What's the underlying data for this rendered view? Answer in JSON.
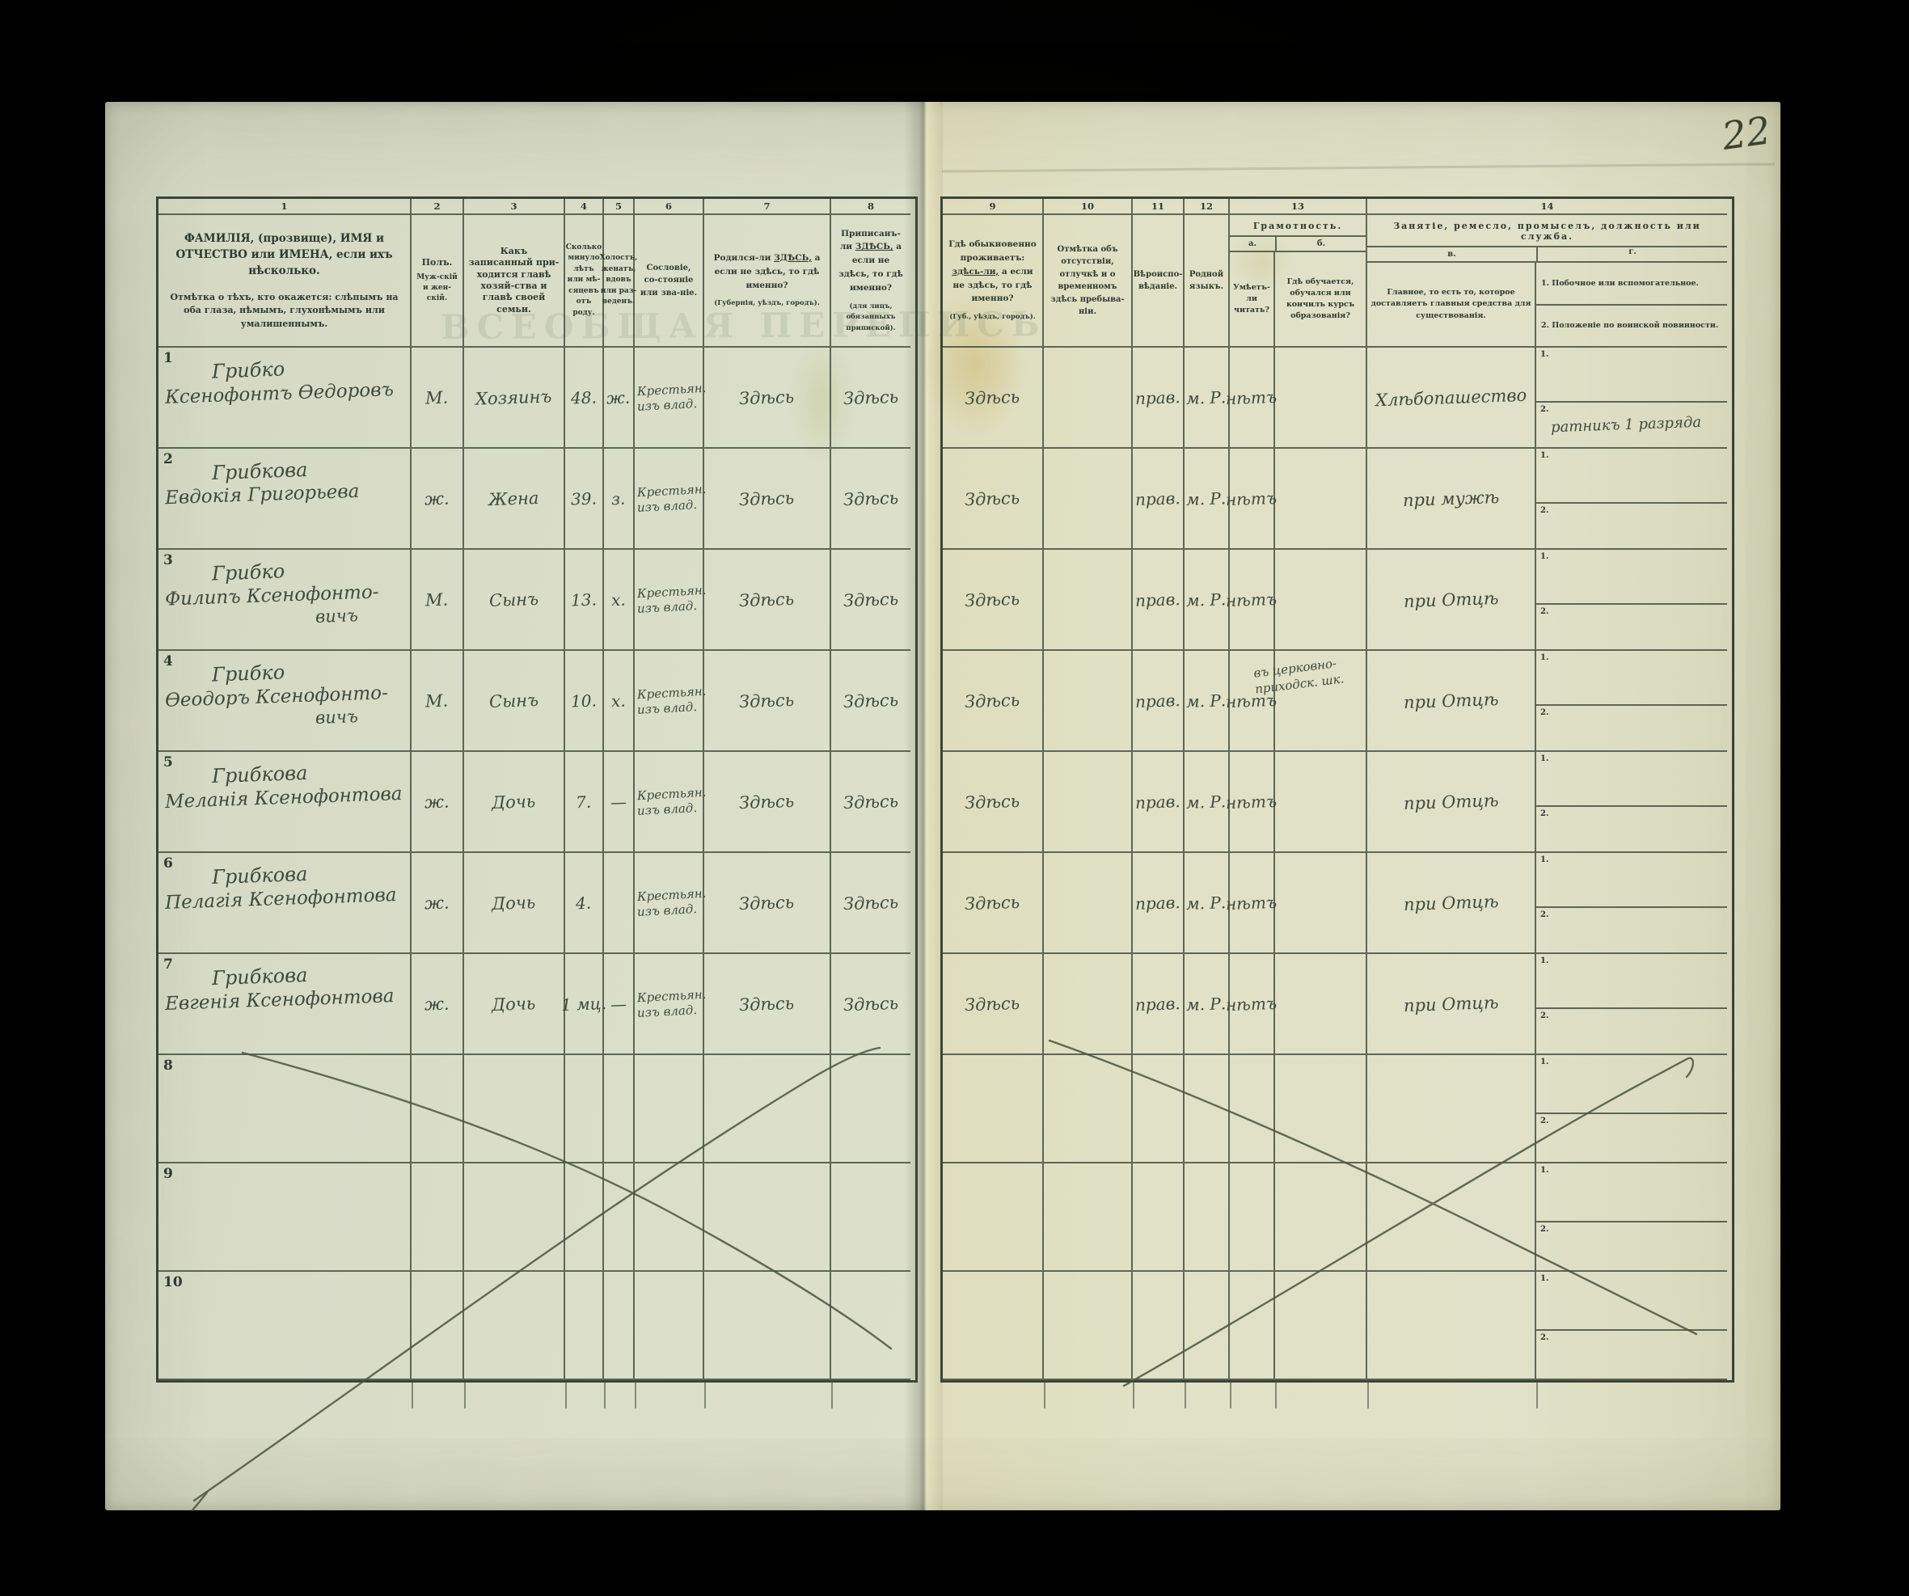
{
  "page": {
    "number": "22",
    "ghost_title": "ВСЕОБЩАЯ ПЕРЕПИСЬ"
  },
  "header": {
    "numbers": [
      "1",
      "2",
      "3",
      "4",
      "5",
      "6",
      "7",
      "8",
      "9",
      "10",
      "11",
      "12",
      "13",
      "14"
    ],
    "col1_main": "ФАМИЛІЯ, (прозвище), ИМЯ и ОТЧЕСТВО или ИМЕНА, если ихъ нѣсколько.",
    "col1_note": "Отмѣтка о тѣхъ, кто окажется: слѣпымъ на оба глаза, нѣмымъ, глухонѣмымъ или умалишеннымъ.",
    "col2_title": "Полъ.",
    "col2_sub": "Муж-скій и жен-скій.",
    "col3": "Какъ записанный при-ходится главѣ хозяй-ства и главѣ своей семьи.",
    "col4": "Сколько минуло лѣтъ или мѣ-сяцевъ отъ роду.",
    "col5": "Холостъ, женатъ, вдовъ или раз-веденъ.",
    "col6": "Сословіе, со-стояніе или зва-ніе.",
    "col7_pre": "Родился-ли",
    "col7_em": "ЗДѢСЬ,",
    "col7_post": "а если не здѣсь, то гдѣ именно?",
    "col7_note": "(Губернія, уѣздъ, городъ).",
    "col8_pre": "Приписанъ-ли",
    "col8_em": "ЗДѢСЬ,",
    "col8_post": "а если не здѣсь, то гдѣ именно?",
    "col8_note": "(для лицъ, обязанныхъ припиской).",
    "col9_pre": "Гдѣ обыкновенно проживаетъ:",
    "col9_em": "здѣсь-ли,",
    "col9_post": "а если не здѣсь, то гдѣ именно?",
    "col9_note": "(Губ., уѣздъ, городъ).",
    "col10": "Отмѣтка объ отсутствіи, отлучкѣ и о временномъ здѣсь пребыва-ніи.",
    "col11": "Вѣроиспо-вѣданіе.",
    "col12": "Родной языкъ.",
    "col13_title": "Грамотность.",
    "col13_a_label": "а.",
    "col13_b_label": "б.",
    "col13_a": "Умѣетъ-ли читать?",
    "col13_b": "Гдѣ обучается, обучался или кончилъ курсъ образованія?",
    "col14_title": "Занятіе, ремесло, промыселъ, должность или служба.",
    "col14_v_label": "в.",
    "col14_g_label": "г.",
    "col14_v": "Главное, то есть то, которое доставляетъ главныя средства для существованія.",
    "col14_g1": "1. Побочное или вспомогательное.",
    "col14_g2": "2. Положеніе по воинской повинности.",
    "row_sub1": "1.",
    "row_sub2": "2."
  },
  "rows": [
    {
      "num": "1",
      "name1": "Грибко",
      "name2": "Ксенофонтъ Ѳедоровъ",
      "name3": "",
      "sex": "М.",
      "relation": "Хозяинъ",
      "age": "48.",
      "marital": "ж.",
      "estate1": "Крестьян.",
      "estate2": "изъ влад.",
      "born": "Здѣсь",
      "registered": "Здѣсь",
      "resides": "Здѣсь",
      "absence": "",
      "religion": "прав.",
      "language": "м. Р.",
      "literate": "нѣтъ",
      "education1": "",
      "education2": "",
      "occupation": "Хлѣбопашество",
      "side1": "",
      "side2": "ратникъ 1 разряда"
    },
    {
      "num": "2",
      "name1": "Грибкова",
      "name2": "Евдокія Григорьева",
      "name3": "",
      "sex": "ж.",
      "relation": "Жена",
      "age": "39.",
      "marital": "з.",
      "estate1": "Крестьян.",
      "estate2": "изъ влад.",
      "born": "Здѣсь",
      "registered": "Здѣсь",
      "resides": "Здѣсь",
      "absence": "",
      "religion": "прав.",
      "language": "м. Р.",
      "literate": "нѣтъ",
      "education1": "",
      "education2": "",
      "occupation": "при мужѣ",
      "side1": "",
      "side2": ""
    },
    {
      "num": "3",
      "name1": "Грибко",
      "name2": "Филипъ Ксенофонто-",
      "name3": "вичъ",
      "sex": "М.",
      "relation": "Сынъ",
      "age": "13.",
      "marital": "х.",
      "estate1": "Крестьян.",
      "estate2": "изъ влад.",
      "born": "Здѣсь",
      "registered": "Здѣсь",
      "resides": "Здѣсь",
      "absence": "",
      "religion": "прав.",
      "language": "м. Р.",
      "literate": "нѣтъ",
      "education1": "",
      "education2": "",
      "occupation": "при Отцѣ",
      "side1": "",
      "side2": ""
    },
    {
      "num": "4",
      "name1": "Грибко",
      "name2": "Ѳеодоръ Ксенофонто-",
      "name3": "вичъ",
      "sex": "М.",
      "relation": "Сынъ",
      "age": "10.",
      "marital": "х.",
      "estate1": "Крестьян.",
      "estate2": "изъ влад.",
      "born": "Здѣсь",
      "registered": "Здѣсь",
      "resides": "Здѣсь",
      "absence": "",
      "religion": "прав.",
      "language": "м. Р.",
      "literate": "нѣтъ",
      "education1": "въ церковно-",
      "education2": "приходск. шк.",
      "occupation": "при Отцѣ",
      "side1": "",
      "side2": ""
    },
    {
      "num": "5",
      "name1": "Грибкова",
      "name2": "Меланія Ксенофонтова",
      "name3": "",
      "sex": "ж.",
      "relation": "Дочь",
      "age": "7.",
      "marital": "—",
      "estate1": "Крестьян.",
      "estate2": "изъ влад.",
      "born": "Здѣсь",
      "registered": "Здѣсь",
      "resides": "Здѣсь",
      "absence": "",
      "religion": "прав.",
      "language": "м. Р.",
      "literate": "нѣтъ",
      "education1": "",
      "education2": "",
      "occupation": "при Отцѣ",
      "side1": "",
      "side2": ""
    },
    {
      "num": "6",
      "name1": "Грибкова",
      "name2": "Пелагія Ксенофонтова",
      "name3": "",
      "sex": "ж.",
      "relation": "Дочь",
      "age": "4.",
      "marital": "",
      "estate1": "Крестьян.",
      "estate2": "изъ влад.",
      "born": "Здѣсь",
      "registered": "Здѣсь",
      "resides": "Здѣсь",
      "absence": "",
      "religion": "прав.",
      "language": "м. Р.",
      "literate": "нѣтъ",
      "education1": "",
      "education2": "",
      "occupation": "при Отцѣ",
      "side1": "",
      "side2": ""
    },
    {
      "num": "7",
      "name1": "Грибкова",
      "name2": "Евгенія Ксенофонтова",
      "name3": "",
      "sex": "ж.",
      "relation": "Дочь",
      "age": "1 мц.",
      "marital": "—",
      "estate1": "Крестьян.",
      "estate2": "изъ влад.",
      "born": "Здѣсь",
      "registered": "Здѣсь",
      "resides": "Здѣсь",
      "absence": "",
      "religion": "прав.",
      "language": "м. Р.",
      "literate": "нѣтъ",
      "education1": "",
      "education2": "",
      "occupation": "при Отцѣ",
      "side1": "",
      "side2": ""
    },
    {
      "num": "8",
      "name1": "",
      "name2": "",
      "name3": "",
      "sex": "",
      "relation": "",
      "age": "",
      "marital": "",
      "estate1": "",
      "estate2": "",
      "born": "",
      "registered": "",
      "resides": "",
      "absence": "",
      "religion": "",
      "language": "",
      "literate": "",
      "education1": "",
      "education2": "",
      "occupation": "",
      "side1": "",
      "side2": ""
    },
    {
      "num": "9",
      "name1": "",
      "name2": "",
      "name3": "",
      "sex": "",
      "relation": "",
      "age": "",
      "marital": "",
      "estate1": "",
      "estate2": "",
      "born": "",
      "registered": "",
      "resides": "",
      "absence": "",
      "religion": "",
      "language": "",
      "literate": "",
      "education1": "",
      "education2": "",
      "occupation": "",
      "side1": "",
      "side2": ""
    },
    {
      "num": "10",
      "name1": "",
      "name2": "",
      "name3": "",
      "sex": "",
      "relation": "",
      "age": "",
      "marital": "",
      "estate1": "",
      "estate2": "",
      "born": "",
      "registered": "",
      "resides": "",
      "absence": "",
      "religion": "",
      "language": "",
      "literate": "",
      "education1": "",
      "education2": "",
      "occupation": "",
      "side1": "",
      "side2": ""
    }
  ]
}
